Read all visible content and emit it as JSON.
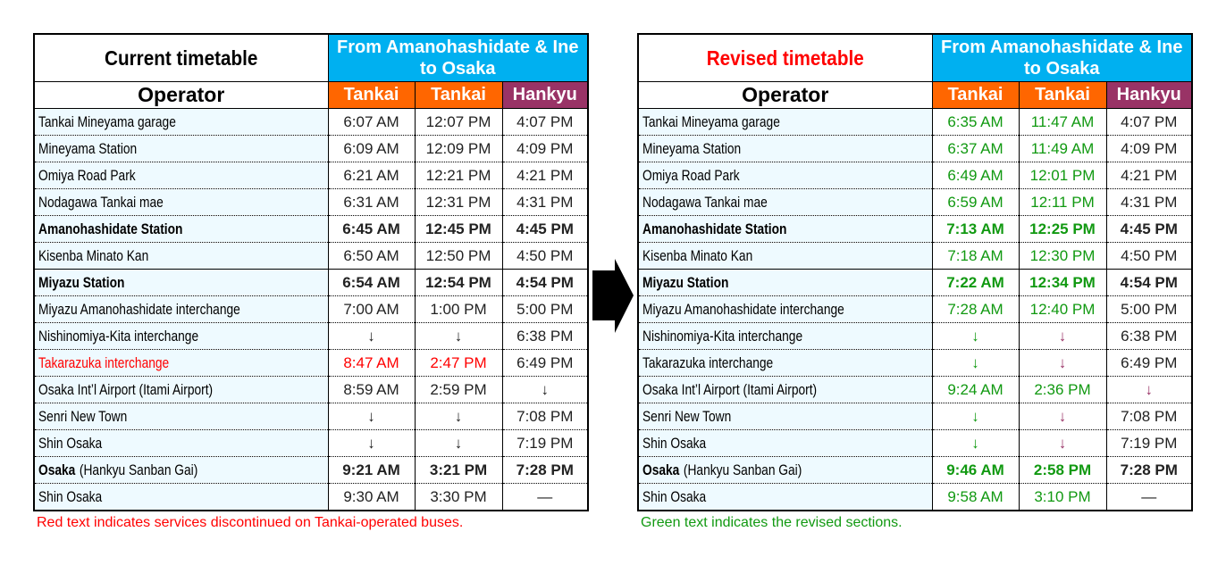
{
  "colors": {
    "route": "#00b0f0",
    "tankai": "#ff6600",
    "hankyu": "#993366",
    "red": "#ff0000",
    "green": "#119911",
    "purple": "#993366"
  },
  "tables": [
    {
      "title": "Current timetable",
      "title_color": "#000000",
      "route": "From Amanohashidate & Ine to Osaka",
      "operator_label": "Operator",
      "operators": [
        "Tankai",
        "Tankai",
        "Hankyu"
      ],
      "note": "Red text indicates services discontinued on Tankai-operated buses.",
      "note_color": "#ff0000",
      "rows": [
        {
          "name": "Tankai Mineyama garage",
          "times": [
            [
              "6:07 AM"
            ],
            [
              "12:07 PM"
            ],
            [
              "4:07 PM"
            ]
          ]
        },
        {
          "name": "Mineyama Station",
          "times": [
            [
              "6:09 AM"
            ],
            [
              "12:09 PM"
            ],
            [
              "4:09 PM"
            ]
          ]
        },
        {
          "name": "Omiya Road Park",
          "times": [
            [
              "6:21 AM"
            ],
            [
              "12:21 PM"
            ],
            [
              "4:21 PM"
            ]
          ]
        },
        {
          "name": "Nodagawa Tankai mae",
          "times": [
            [
              "6:31 AM"
            ],
            [
              "12:31 PM"
            ],
            [
              "4:31 PM"
            ]
          ]
        },
        {
          "name": "Amanohashidate Station",
          "bold": true,
          "times": [
            [
              "6:45 AM"
            ],
            [
              "12:45 PM"
            ],
            [
              "4:45 PM"
            ]
          ]
        },
        {
          "name": "Kisenba Minato Kan",
          "times": [
            [
              "6:50 AM"
            ],
            [
              "12:50 PM"
            ],
            [
              "4:50 PM"
            ]
          ]
        },
        {
          "name": "Miyazu Station",
          "bold": true,
          "times": [
            [
              "6:54 AM"
            ],
            [
              "12:54 PM"
            ],
            [
              "4:54 PM"
            ]
          ]
        },
        {
          "name": "Miyazu Amanohashidate interchange",
          "times": [
            [
              "7:00 AM"
            ],
            [
              "1:00 PM"
            ],
            [
              "5:00 PM"
            ]
          ]
        },
        {
          "name": "Nishinomiya-Kita interchange",
          "times": [
            [
              "↓"
            ],
            [
              "↓"
            ],
            [
              "6:38 PM"
            ]
          ]
        },
        {
          "name": "Takarazuka interchange",
          "name_color": "red",
          "times": [
            [
              "8:47 AM",
              "red"
            ],
            [
              "2:47 PM",
              "red"
            ],
            [
              "6:49 PM"
            ]
          ]
        },
        {
          "name": "Osaka Int’l Airport (Itami Airport)",
          "times": [
            [
              "8:59 AM"
            ],
            [
              "2:59 PM"
            ],
            [
              "↓"
            ]
          ]
        },
        {
          "name": "Senri New Town",
          "times": [
            [
              "↓"
            ],
            [
              "↓"
            ],
            [
              "7:08 PM"
            ]
          ]
        },
        {
          "name": "Shin Osaka",
          "times": [
            [
              "↓"
            ],
            [
              "↓"
            ],
            [
              "7:19 PM"
            ]
          ]
        },
        {
          "name": "Osaka",
          "suffix": "(Hankyu Sanban Gai)",
          "bold": true,
          "times": [
            [
              "9:21 AM"
            ],
            [
              "3:21 PM"
            ],
            [
              "7:28 PM"
            ]
          ]
        },
        {
          "name": "Shin Osaka",
          "times": [
            [
              "9:30 AM"
            ],
            [
              "3:30 PM"
            ],
            [
              "—"
            ]
          ]
        }
      ]
    },
    {
      "title": "Revised timetable",
      "title_color": "#ff0000",
      "route": "From Amanohashidate & Ine to Osaka",
      "operator_label": "Operator",
      "operators": [
        "Tankai",
        "Tankai",
        "Hankyu"
      ],
      "note": "Green text indicates the revised sections.",
      "note_color": "#119911",
      "rows": [
        {
          "name": "Tankai Mineyama garage",
          "times": [
            [
              "6:35 AM",
              "green"
            ],
            [
              "11:47 AM",
              "green"
            ],
            [
              "4:07 PM"
            ]
          ]
        },
        {
          "name": "Mineyama Station",
          "times": [
            [
              "6:37 AM",
              "green"
            ],
            [
              "11:49 AM",
              "green"
            ],
            [
              "4:09 PM"
            ]
          ]
        },
        {
          "name": "Omiya Road Park",
          "times": [
            [
              "6:49 AM",
              "green"
            ],
            [
              "12:01 PM",
              "green"
            ],
            [
              "4:21 PM"
            ]
          ]
        },
        {
          "name": "Nodagawa Tankai mae",
          "times": [
            [
              "6:59 AM",
              "green"
            ],
            [
              "12:11 PM",
              "green"
            ],
            [
              "4:31 PM"
            ]
          ]
        },
        {
          "name": "Amanohashidate Station",
          "bold": true,
          "times": [
            [
              "7:13 AM",
              "green"
            ],
            [
              "12:25 PM",
              "green"
            ],
            [
              "4:45 PM"
            ]
          ]
        },
        {
          "name": "Kisenba Minato Kan",
          "times": [
            [
              "7:18 AM",
              "green"
            ],
            [
              "12:30 PM",
              "green"
            ],
            [
              "4:50 PM"
            ]
          ]
        },
        {
          "name": "Miyazu Station",
          "bold": true,
          "times": [
            [
              "7:22 AM",
              "green"
            ],
            [
              "12:34 PM",
              "green"
            ],
            [
              "4:54 PM"
            ]
          ]
        },
        {
          "name": "Miyazu Amanohashidate interchange",
          "times": [
            [
              "7:28 AM",
              "green"
            ],
            [
              "12:40 PM",
              "green"
            ],
            [
              "5:00 PM"
            ]
          ]
        },
        {
          "name": "Nishinomiya-Kita interchange",
          "times": [
            [
              "↓",
              "green"
            ],
            [
              "↓",
              "purple"
            ],
            [
              "6:38 PM"
            ]
          ]
        },
        {
          "name": "Takarazuka interchange",
          "times": [
            [
              "↓",
              "green"
            ],
            [
              "↓",
              "purple"
            ],
            [
              "6:49 PM"
            ]
          ]
        },
        {
          "name": "Osaka Int’l Airport (Itami Airport)",
          "times": [
            [
              "9:24 AM",
              "green"
            ],
            [
              "2:36 PM",
              "green"
            ],
            [
              "↓",
              "purple"
            ]
          ]
        },
        {
          "name": "Senri New Town",
          "times": [
            [
              "↓",
              "green"
            ],
            [
              "↓",
              "purple"
            ],
            [
              "7:08 PM"
            ]
          ]
        },
        {
          "name": "Shin Osaka",
          "times": [
            [
              "↓",
              "green"
            ],
            [
              "↓",
              "purple"
            ],
            [
              "7:19 PM"
            ]
          ]
        },
        {
          "name": "Osaka",
          "suffix": "(Hankyu Sanban Gai)",
          "bold": true,
          "times": [
            [
              "9:46 AM",
              "green"
            ],
            [
              "2:58 PM",
              "green"
            ],
            [
              "7:28 PM"
            ]
          ]
        },
        {
          "name": "Shin Osaka",
          "times": [
            [
              "9:58 AM",
              "green"
            ],
            [
              "3:10 PM",
              "green"
            ],
            [
              "—"
            ]
          ]
        }
      ]
    }
  ]
}
